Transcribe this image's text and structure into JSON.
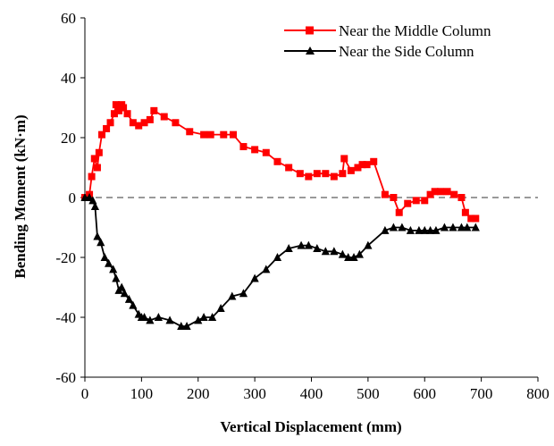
{
  "chart_data": {
    "type": "line",
    "title": "",
    "xlabel": "Vertical Displacement (mm)",
    "ylabel": "Bending Moment (kN·m)",
    "xlim": [
      0,
      800
    ],
    "ylim": [
      -60,
      60
    ],
    "x_ticks": [
      0,
      100,
      200,
      300,
      400,
      500,
      600,
      700,
      800
    ],
    "y_ticks": [
      -60,
      -40,
      -20,
      0,
      20,
      40,
      60
    ],
    "x_tick_labels": [
      "0",
      "100",
      "200",
      "300",
      "400",
      "500",
      "600",
      "700",
      "800"
    ],
    "y_tick_labels": [
      "-60",
      "-40",
      "-20",
      "0",
      "20",
      "40",
      "60"
    ],
    "grid": false,
    "zero_reference_line": "dashed",
    "legend_position": "top-right",
    "series": [
      {
        "name": "Near the Middle Column",
        "color": "#ff0000",
        "marker": "square",
        "points": [
          [
            0,
            0
          ],
          [
            8,
            1
          ],
          [
            12,
            7
          ],
          [
            17,
            13
          ],
          [
            22,
            10
          ],
          [
            25,
            15
          ],
          [
            30,
            21
          ],
          [
            38,
            23
          ],
          [
            45,
            25
          ],
          [
            52,
            28
          ],
          [
            55,
            31
          ],
          [
            60,
            29
          ],
          [
            65,
            31
          ],
          [
            68,
            30
          ],
          [
            75,
            28
          ],
          [
            85,
            25
          ],
          [
            95,
            24
          ],
          [
            105,
            25
          ],
          [
            115,
            26
          ],
          [
            122,
            29
          ],
          [
            140,
            27
          ],
          [
            160,
            25
          ],
          [
            185,
            22
          ],
          [
            210,
            21
          ],
          [
            222,
            21
          ],
          [
            245,
            21
          ],
          [
            262,
            21
          ],
          [
            280,
            17
          ],
          [
            300,
            16
          ],
          [
            320,
            15
          ],
          [
            340,
            12
          ],
          [
            360,
            10
          ],
          [
            380,
            8
          ],
          [
            395,
            7
          ],
          [
            410,
            8
          ],
          [
            425,
            8
          ],
          [
            440,
            7
          ],
          [
            455,
            8
          ],
          [
            458,
            13
          ],
          [
            470,
            9
          ],
          [
            482,
            10
          ],
          [
            490,
            11
          ],
          [
            498,
            11
          ],
          [
            510,
            12
          ],
          [
            530,
            1
          ],
          [
            545,
            0
          ],
          [
            555,
            -5
          ],
          [
            570,
            -2
          ],
          [
            585,
            -1
          ],
          [
            600,
            -1
          ],
          [
            610,
            1
          ],
          [
            618,
            2
          ],
          [
            628,
            2
          ],
          [
            640,
            2
          ],
          [
            652,
            1
          ],
          [
            665,
            0
          ],
          [
            672,
            -5
          ],
          [
            682,
            -7
          ],
          [
            690,
            -7
          ]
        ]
      },
      {
        "name": "Near the Side Column",
        "color": "#000000",
        "marker": "triangle",
        "points": [
          [
            0,
            0
          ],
          [
            8,
            0
          ],
          [
            14,
            -1
          ],
          [
            18,
            -3
          ],
          [
            22,
            -13
          ],
          [
            28,
            -15
          ],
          [
            35,
            -20
          ],
          [
            42,
            -22
          ],
          [
            50,
            -24
          ],
          [
            55,
            -27
          ],
          [
            60,
            -31
          ],
          [
            65,
            -30
          ],
          [
            70,
            -32
          ],
          [
            78,
            -34
          ],
          [
            85,
            -36
          ],
          [
            95,
            -39
          ],
          [
            100,
            -40
          ],
          [
            105,
            -40
          ],
          [
            115,
            -41
          ],
          [
            130,
            -40
          ],
          [
            150,
            -41
          ],
          [
            170,
            -43
          ],
          [
            180,
            -43
          ],
          [
            200,
            -41
          ],
          [
            210,
            -40
          ],
          [
            225,
            -40
          ],
          [
            240,
            -37
          ],
          [
            260,
            -33
          ],
          [
            280,
            -32
          ],
          [
            300,
            -27
          ],
          [
            320,
            -24
          ],
          [
            340,
            -20
          ],
          [
            360,
            -17
          ],
          [
            382,
            -16
          ],
          [
            395,
            -16
          ],
          [
            410,
            -17
          ],
          [
            425,
            -18
          ],
          [
            440,
            -18
          ],
          [
            455,
            -19
          ],
          [
            465,
            -20
          ],
          [
            475,
            -20
          ],
          [
            485,
            -19
          ],
          [
            500,
            -16
          ],
          [
            530,
            -11
          ],
          [
            545,
            -10
          ],
          [
            560,
            -10
          ],
          [
            575,
            -11
          ],
          [
            590,
            -11
          ],
          [
            600,
            -11
          ],
          [
            610,
            -11
          ],
          [
            620,
            -11
          ],
          [
            635,
            -10
          ],
          [
            650,
            -10
          ],
          [
            665,
            -10
          ],
          [
            675,
            -10
          ],
          [
            690,
            -10
          ]
        ]
      }
    ]
  }
}
